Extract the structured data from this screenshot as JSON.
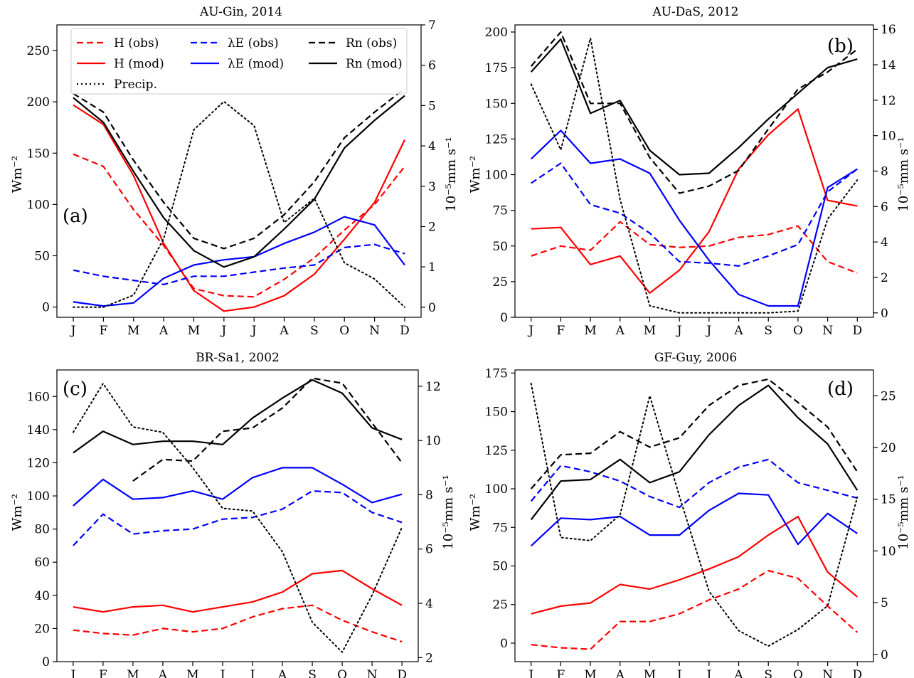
{
  "figure": {
    "months": [
      "J",
      "F",
      "M",
      "A",
      "M",
      "J",
      "J",
      "A",
      "S",
      "O",
      "N",
      "D"
    ],
    "left_axis_label": "Wm⁻²",
    "right_axis_label": "10⁻⁵mm s⁻¹",
    "colors": {
      "H": "#ff0000",
      "LE": "#0000ff",
      "Rn": "#000000",
      "Precip": "#000000"
    }
  },
  "legend": {
    "entries": [
      {
        "key": "H_obs",
        "label": "H (obs)",
        "color": "#ff0000",
        "style": "dashed"
      },
      {
        "key": "H_mod",
        "label": "H (mod)",
        "color": "#ff0000",
        "style": "solid"
      },
      {
        "key": "Precip",
        "label": "Precip.",
        "color": "#000000",
        "style": "dotted"
      },
      {
        "key": "LE_obs",
        "label": "λE (obs)",
        "color": "#0000ff",
        "style": "dashed"
      },
      {
        "key": "LE_mod",
        "label": "λE (mod)",
        "color": "#0000ff",
        "style": "solid"
      },
      {
        "key": "Rn_obs",
        "label": "Rn (obs)",
        "color": "#000000",
        "style": "dashed"
      },
      {
        "key": "Rn_mod",
        "label": "Rn (mod)",
        "color": "#000000",
        "style": "solid"
      }
    ]
  },
  "chart_data": [
    {
      "type": "line",
      "title": "AU-Gin, 2014",
      "panel_letter": "(a)",
      "categories": [
        "J",
        "F",
        "M",
        "A",
        "M",
        "J",
        "J",
        "A",
        "S",
        "O",
        "N",
        "D"
      ],
      "ylabel": "Wm⁻²",
      "ylim": [
        -10,
        275
      ],
      "yticks": [
        0,
        50,
        100,
        150,
        200,
        250
      ],
      "y2label": "10⁻⁵mm s⁻¹",
      "y2lim": [
        -0.25,
        7
      ],
      "y2ticks": [
        0,
        1,
        2,
        3,
        4,
        5,
        6,
        7
      ],
      "series": [
        {
          "key": "H_obs",
          "axis": "left",
          "values": [
            149,
            137,
            95,
            60,
            18,
            11,
            10,
            27,
            48,
            75,
            100,
            137
          ]
        },
        {
          "key": "H_mod",
          "axis": "left",
          "values": [
            197,
            178,
            128,
            62,
            16,
            -4,
            0,
            11,
            32,
            66,
            102,
            163
          ]
        },
        {
          "key": "LE_obs",
          "axis": "left",
          "values": [
            36,
            30,
            26,
            22,
            30,
            30,
            34,
            38,
            41,
            58,
            61,
            52
          ]
        },
        {
          "key": "LE_mod",
          "axis": "left",
          "values": [
            5,
            1,
            4,
            28,
            41,
            46,
            49,
            62,
            73,
            88,
            80,
            41
          ]
        },
        {
          "key": "Rn_obs",
          "axis": "left",
          "values": [
            208,
            190,
            143,
            102,
            67,
            57,
            67,
            90,
            122,
            165,
            190,
            213
          ]
        },
        {
          "key": "Rn_mod",
          "axis": "left",
          "values": [
            204,
            180,
            132,
            87,
            55,
            39,
            49,
            76,
            105,
            155,
            182,
            206
          ]
        },
        {
          "key": "Precip",
          "axis": "right",
          "values": [
            0,
            0,
            0.3,
            1.7,
            4.4,
            5.1,
            4.5,
            2.1,
            2.7,
            1.1,
            0.7,
            0
          ]
        }
      ]
    },
    {
      "type": "line",
      "title": "AU-DaS, 2012",
      "panel_letter": "(b)",
      "categories": [
        "J",
        "F",
        "M",
        "A",
        "M",
        "J",
        "J",
        "A",
        "S",
        "O",
        "N",
        "D"
      ],
      "ylabel": "Wm⁻²",
      "ylim": [
        0,
        205
      ],
      "yticks": [
        0,
        25,
        50,
        75,
        100,
        125,
        150,
        175,
        200
      ],
      "y2label": "10⁻⁵mm s⁻¹",
      "y2lim": [
        -0.25,
        16.25
      ],
      "y2ticks": [
        0,
        2,
        4,
        6,
        8,
        10,
        12,
        14,
        16
      ],
      "series": [
        {
          "key": "H_obs",
          "axis": "left",
          "values": [
            43,
            50,
            47,
            67,
            51,
            49,
            50,
            56,
            58,
            64,
            39,
            31
          ]
        },
        {
          "key": "H_mod",
          "axis": "left",
          "values": [
            62,
            63,
            37,
            43,
            17,
            33,
            60,
            104,
            128,
            146,
            82,
            78
          ]
        },
        {
          "key": "LE_obs",
          "axis": "left",
          "values": [
            94,
            108,
            79,
            73,
            59,
            39,
            38,
            36,
            43,
            51,
            88,
            104
          ]
        },
        {
          "key": "LE_mod",
          "axis": "left",
          "values": [
            111,
            131,
            108,
            111,
            101,
            68,
            40,
            16,
            8,
            8,
            91,
            104
          ]
        },
        {
          "key": "Rn_obs",
          "axis": "left",
          "values": [
            176,
            200,
            150,
            150,
            112,
            87,
            92,
            103,
            132,
            160,
            172,
            188
          ]
        },
        {
          "key": "Rn_mod",
          "axis": "left",
          "values": [
            172,
            195,
            143,
            152,
            117,
            100,
            101,
            119,
            139,
            157,
            175,
            181
          ]
        },
        {
          "key": "Precip",
          "axis": "right",
          "values": [
            12.9,
            9.2,
            15.5,
            6.4,
            0.4,
            0,
            0,
            0,
            0,
            0.1,
            5.3,
            7.5
          ]
        }
      ]
    },
    {
      "type": "line",
      "title": "BR-Sa1, 2002",
      "panel_letter": "(c)",
      "categories": [
        "J",
        "F",
        "M",
        "A",
        "M",
        "J",
        "J",
        "A",
        "S",
        "O",
        "N",
        "D"
      ],
      "ylabel": "Wm⁻²",
      "ylim": [
        0,
        176
      ],
      "yticks": [
        0,
        20,
        40,
        60,
        80,
        100,
        120,
        140,
        160
      ],
      "y2label": "10⁻⁵mm s⁻¹",
      "y2lim": [
        1.85,
        12.6
      ],
      "y2ticks": [
        2,
        4,
        6,
        8,
        10,
        12
      ],
      "series": [
        {
          "key": "H_obs",
          "axis": "left",
          "values": [
            19,
            17,
            16,
            20,
            18,
            20,
            27,
            32,
            34,
            25,
            18,
            12
          ]
        },
        {
          "key": "H_mod",
          "axis": "left",
          "values": [
            33,
            30,
            33,
            34,
            30,
            33,
            36,
            42,
            53,
            55,
            44,
            34
          ]
        },
        {
          "key": "LE_obs",
          "axis": "left",
          "values": [
            70,
            89,
            77,
            79,
            80,
            86,
            87,
            92,
            103,
            102,
            90,
            84
          ]
        },
        {
          "key": "LE_mod",
          "axis": "left",
          "values": [
            94,
            110,
            98,
            99,
            103,
            98,
            111,
            117,
            117,
            107,
            96,
            101
          ]
        },
        {
          "key": "Rn_obs",
          "axis": "left",
          "values": [
            null,
            null,
            109,
            122,
            121,
            139,
            141,
            153,
            171,
            168,
            144,
            120
          ]
        },
        {
          "key": "Rn_mod",
          "axis": "left",
          "values": [
            126,
            139,
            131,
            133,
            133,
            131,
            147,
            159,
            170,
            162,
            141,
            134
          ]
        },
        {
          "key": "Precip",
          "axis": "right",
          "values": [
            10.3,
            12.1,
            10.5,
            10.3,
            9.0,
            7.5,
            7.4,
            5.9,
            3.3,
            2.2,
            4.3,
            6.8
          ]
        }
      ]
    },
    {
      "type": "line",
      "title": "GF-Guy, 2006",
      "panel_letter": "(d)",
      "categories": [
        "J",
        "F",
        "M",
        "A",
        "M",
        "J",
        "J",
        "A",
        "S",
        "O",
        "N",
        "D"
      ],
      "ylabel": "Wm⁻²",
      "ylim": [
        -12,
        177
      ],
      "yticks": [
        0,
        25,
        50,
        75,
        100,
        125,
        150,
        175
      ],
      "y2label": "10⁻⁵mm s⁻¹",
      "y2lim": [
        -0.7,
        27.5
      ],
      "y2ticks": [
        0,
        5,
        10,
        15,
        20,
        25
      ],
      "series": [
        {
          "key": "H_obs",
          "axis": "left",
          "values": [
            -1,
            -3,
            -4,
            14,
            14,
            19,
            28,
            35,
            47,
            42,
            24,
            7
          ]
        },
        {
          "key": "H_mod",
          "axis": "left",
          "values": [
            19,
            24,
            26,
            38,
            35,
            41,
            48,
            56,
            70,
            82,
            46,
            30
          ]
        },
        {
          "key": "LE_obs",
          "axis": "left",
          "values": [
            92,
            115,
            111,
            105,
            95,
            88,
            104,
            114,
            119,
            104,
            99,
            94
          ]
        },
        {
          "key": "LE_mod",
          "axis": "left",
          "values": [
            63,
            81,
            80,
            82,
            70,
            70,
            86,
            97,
            96,
            64,
            84,
            71
          ]
        },
        {
          "key": "Rn_obs",
          "axis": "left",
          "values": [
            100,
            122,
            123,
            137,
            127,
            133,
            154,
            167,
            171,
            156,
            140,
            111
          ]
        },
        {
          "key": "Rn_mod",
          "axis": "left",
          "values": [
            80,
            105,
            106,
            119,
            104,
            111,
            135,
            154,
            167,
            146,
            129,
            99
          ]
        },
        {
          "key": "Precip",
          "axis": "right",
          "values": [
            26.2,
            11.3,
            11.0,
            13.5,
            25.0,
            15.3,
            6.1,
            2.3,
            0.8,
            2.4,
            4.7,
            15.2
          ]
        }
      ]
    }
  ]
}
